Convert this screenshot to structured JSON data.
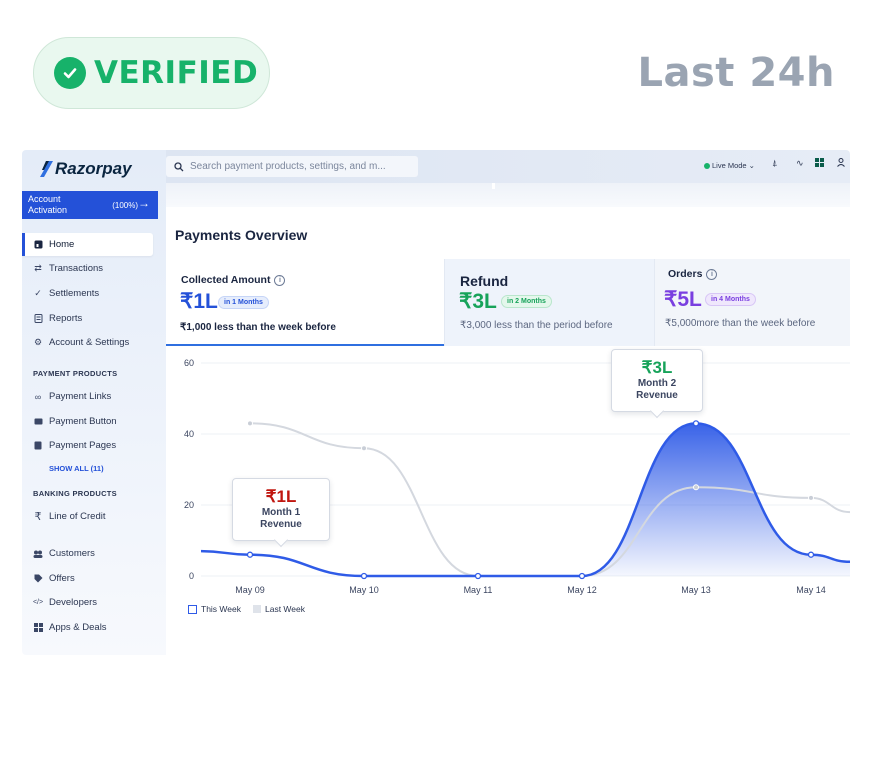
{
  "badge": {
    "label": "VERIFIED",
    "icon": "check-icon",
    "color": "#17b26a"
  },
  "period": "Last 24h",
  "app": {
    "logo": "Razorpay",
    "activation": {
      "label": "Account Activation",
      "percent": "(100%)"
    },
    "search_placeholder": "Search payment products, settings, and m...",
    "mode": "Live Mode",
    "sidebar": {
      "items": [
        {
          "label": "Home",
          "icon": "home-icon",
          "active": true
        },
        {
          "label": "Transactions",
          "icon": "transactions-icon"
        },
        {
          "label": "Settlements",
          "icon": "settlements-icon"
        },
        {
          "label": "Reports",
          "icon": "reports-icon"
        },
        {
          "label": "Account & Settings",
          "icon": "gear-icon"
        }
      ],
      "payment_section": "PAYMENT PRODUCTS",
      "payment_items": [
        {
          "label": "Payment Links",
          "icon": "link-icon"
        },
        {
          "label": "Payment Button",
          "icon": "button-icon"
        },
        {
          "label": "Payment Pages",
          "icon": "page-icon"
        }
      ],
      "show_all": "SHOW ALL (11)",
      "banking_section": "BANKING PRODUCTS",
      "banking_items": [
        {
          "label": "Line of Credit",
          "icon": "rupee-icon"
        }
      ],
      "other_items": [
        {
          "label": "Customers",
          "icon": "customers-icon"
        },
        {
          "label": "Offers",
          "icon": "tag-icon"
        },
        {
          "label": "Developers",
          "icon": "code-icon"
        },
        {
          "label": "Apps & Deals",
          "icon": "apps-icon"
        }
      ]
    },
    "overview": {
      "title": "Payments Overview",
      "cards": [
        {
          "label": "Collected Amount",
          "value": "₹1L",
          "pill": "in 1 Months",
          "sub_value": "₹1,000",
          "sub_text": " less than the week before",
          "color": "#2451d8"
        },
        {
          "label": "Refund",
          "value": "₹3L",
          "pill": "in 2 Months",
          "sub_value": "₹3,000",
          "sub_text": " less than the period before",
          "color": "#17a35a"
        },
        {
          "label": "Orders",
          "value": "₹5L",
          "pill": "in 4 Months",
          "sub_value": "₹5,000",
          "sub_text": "more than the week before",
          "color": "#7a3fe0"
        }
      ]
    }
  },
  "chart_data": {
    "type": "area",
    "categories": [
      "May 09",
      "May 10",
      "May 11",
      "May 12",
      "May 13",
      "May 14"
    ],
    "ylim": [
      0,
      60
    ],
    "yticks": [
      "0",
      "20",
      "40",
      "60"
    ],
    "series": [
      {
        "name": "This Week",
        "color": "#2f5be7",
        "values": [
          6,
          0,
          0,
          0,
          43,
          6
        ]
      },
      {
        "name": "Last Week",
        "color": "#d4d8df",
        "values": [
          43,
          36,
          0,
          0,
          25,
          22
        ]
      }
    ],
    "grid": true,
    "legend": "bottom-left",
    "annotations": [
      {
        "value": "₹1L",
        "label_line1": "Month 1",
        "label_line2": "Revenue",
        "color": "#c0160f"
      },
      {
        "value": "₹3L",
        "label_line1": "Month 2",
        "label_line2": "Revenue",
        "color": "#17a35a"
      }
    ]
  }
}
